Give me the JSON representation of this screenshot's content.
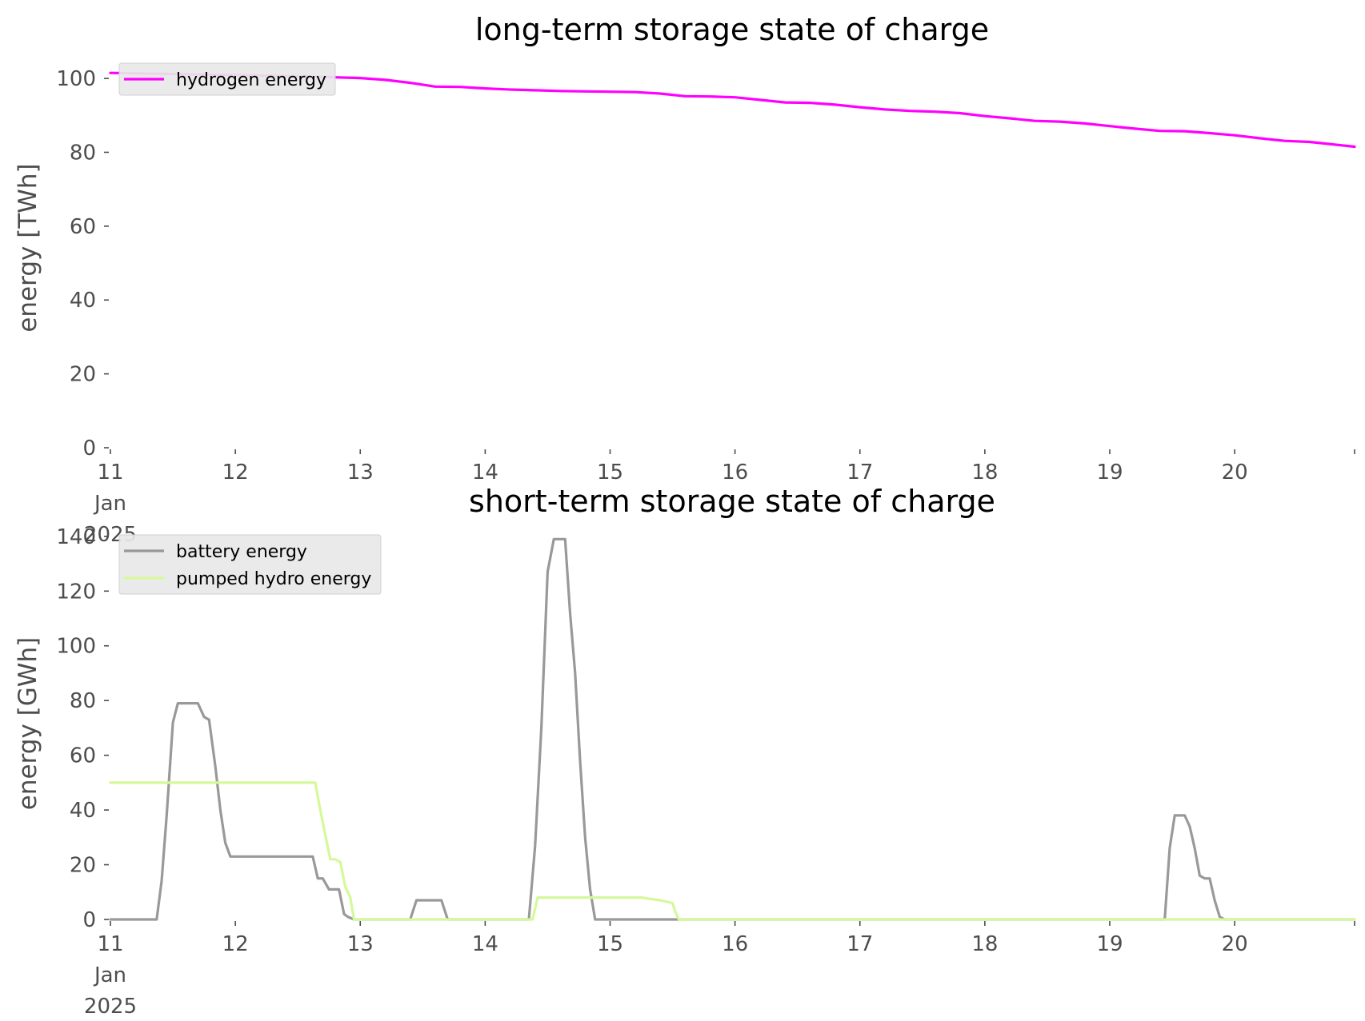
{
  "chart_data": [
    {
      "type": "line",
      "title": "long-term storage state of charge",
      "xlabel": "",
      "ylabel": "energy [TWh]",
      "ylim": [
        0,
        105
      ],
      "xlim": [
        0,
        9.96
      ],
      "x_ticks": [
        0,
        1,
        2,
        3,
        4,
        5,
        6,
        7,
        8,
        9
      ],
      "x_tick_labels": [
        [
          "11",
          "Jan",
          "2025"
        ],
        [
          "12"
        ],
        [
          "13"
        ],
        [
          "14"
        ],
        [
          "15"
        ],
        [
          "16"
        ],
        [
          "17"
        ],
        [
          "18"
        ],
        [
          "19"
        ],
        [
          "20"
        ]
      ],
      "y_ticks": [
        0,
        20,
        40,
        60,
        80,
        100
      ],
      "legend_position": "upper-left",
      "grid": false,
      "series": [
        {
          "name": "hydrogen energy",
          "color": "#ff00ff",
          "x": [
            0,
            0.5,
            1,
            1.5,
            2,
            2.2,
            2.4,
            2.6,
            2.8,
            3,
            3.2,
            3.4,
            3.6,
            3.8,
            4,
            4.2,
            4.4,
            4.6,
            4.8,
            5,
            5.2,
            5.4,
            5.6,
            5.8,
            6,
            6.2,
            6.4,
            6.6,
            6.8,
            7,
            7.2,
            7.4,
            7.6,
            7.8,
            8,
            8.2,
            8.4,
            8.6,
            8.8,
            9,
            9.2,
            9.4,
            9.6,
            9.8,
            9.96
          ],
          "y": [
            101.5,
            101.2,
            100.9,
            100.6,
            100.1,
            99.6,
            98.8,
            97.8,
            97.7,
            97.3,
            97.0,
            96.8,
            96.6,
            96.5,
            96.4,
            96.3,
            95.9,
            95.2,
            95.1,
            94.9,
            94.2,
            93.5,
            93.4,
            92.9,
            92.2,
            91.6,
            91.2,
            91.0,
            90.6,
            89.8,
            89.2,
            88.5,
            88.3,
            87.8,
            87.1,
            86.4,
            85.8,
            85.7,
            85.2,
            84.6,
            83.8,
            83.1,
            82.8,
            82.1,
            81.5
          ]
        }
      ]
    },
    {
      "type": "line",
      "title": "short-term storage state of charge",
      "xlabel": "",
      "ylabel": "energy [GWh]",
      "ylim": [
        0,
        142
      ],
      "xlim": [
        0,
        9.96
      ],
      "x_ticks": [
        0,
        1,
        2,
        3,
        4,
        5,
        6,
        7,
        8,
        9
      ],
      "x_tick_labels": [
        [
          "11",
          "Jan",
          "2025"
        ],
        [
          "12"
        ],
        [
          "13"
        ],
        [
          "14"
        ],
        [
          "15"
        ],
        [
          "16"
        ],
        [
          "17"
        ],
        [
          "18"
        ],
        [
          "19"
        ],
        [
          "20"
        ]
      ],
      "y_ticks": [
        0,
        20,
        40,
        60,
        80,
        100,
        120,
        140
      ],
      "legend_position": "upper-left",
      "grid": false,
      "series": [
        {
          "name": "battery energy",
          "color": "#999999",
          "x": [
            0,
            0.37,
            0.41,
            0.45,
            0.5,
            0.54,
            0.58,
            0.7,
            0.75,
            0.79,
            0.84,
            0.88,
            0.92,
            0.96,
            1.0,
            1.1,
            1.62,
            1.66,
            1.7,
            1.75,
            1.8,
            1.83,
            1.87,
            1.9,
            1.95,
            2.0,
            2.05,
            2.4,
            2.45,
            2.65,
            2.7,
            2.95,
            3.35,
            3.4,
            3.45,
            3.5,
            3.55,
            3.6,
            3.64,
            3.68,
            3.72,
            3.76,
            3.8,
            3.84,
            3.88,
            3.92,
            3.96,
            4.0,
            4.04,
            4.08,
            4.12,
            5.0,
            5.5,
            6.0,
            7.0,
            8.0,
            8.44,
            8.48,
            8.52,
            8.56,
            8.6,
            8.64,
            8.68,
            8.72,
            8.76,
            8.8,
            8.84,
            8.88,
            8.92,
            8.96,
            9.0,
            9.96
          ],
          "y": [
            0,
            0,
            14,
            38,
            72,
            79,
            79,
            79,
            74,
            73,
            56,
            40,
            28,
            23,
            23,
            23,
            23,
            15,
            15,
            11,
            11,
            11,
            2,
            1,
            0,
            0,
            0,
            0,
            7,
            7,
            0,
            0,
            0,
            27,
            70,
            127,
            139,
            139,
            139,
            112,
            90,
            58,
            30,
            11,
            0,
            0,
            0,
            0,
            0,
            0,
            0,
            0,
            0,
            0,
            0,
            0,
            0,
            26,
            38,
            38,
            38,
            34,
            26,
            16,
            15,
            15,
            7,
            1,
            0,
            0,
            0,
            0
          ]
        },
        {
          "name": "pumped hydro energy",
          "color": "#d5f99a",
          "x": [
            0,
            1.0,
            1.64,
            1.68,
            1.72,
            1.76,
            1.8,
            1.84,
            1.88,
            1.92,
            1.95,
            2.0,
            3.0,
            3.38,
            3.42,
            3.5,
            4.0,
            4.25,
            4.4,
            4.5,
            4.52,
            4.55,
            5.0,
            6.0,
            7.0,
            8.0,
            9.0,
            9.96
          ],
          "y": [
            50,
            50,
            50,
            40,
            31,
            22,
            22,
            21,
            12,
            8,
            0,
            0,
            0,
            0,
            8,
            8,
            8,
            8,
            7,
            6,
            3,
            0,
            0,
            0,
            0,
            0,
            0,
            0
          ]
        }
      ]
    }
  ]
}
